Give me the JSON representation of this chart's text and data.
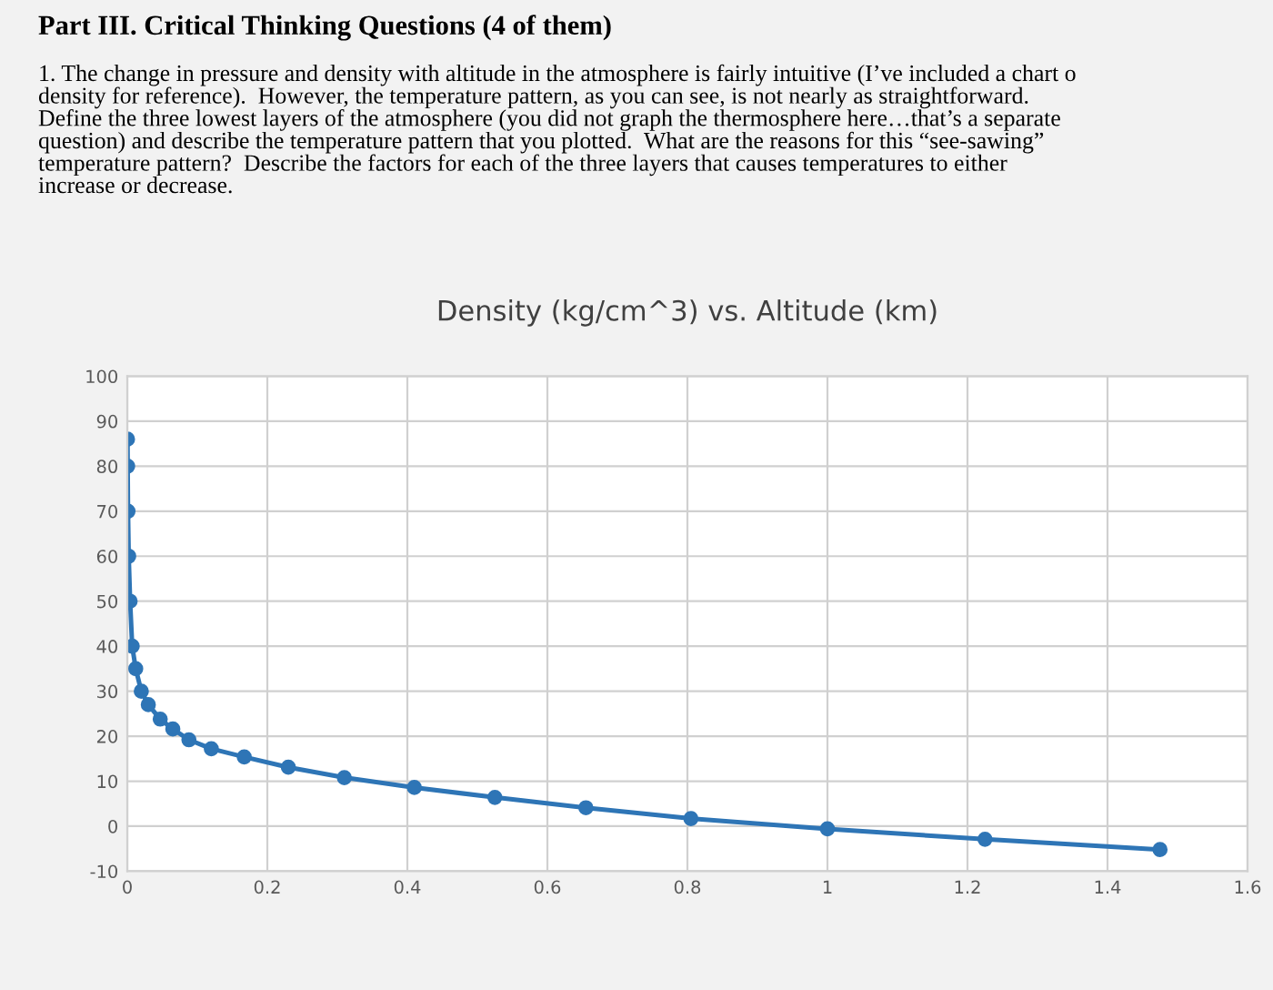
{
  "chart_data": {
    "type": "line",
    "title": "Density (kg/cm^3) vs. Altitude (km)",
    "annotations": [
      "Part III. Critical Thinking Questions (4 of them)",
      "1. The change in pressure and density with altitude in the atmosphere is fairly intuitive (I’ve included a chart o\ndensity for reference).  However, the temperature pattern, as you can see, is not nearly as straightforward.\nDefine the three lowest layers of the atmosphere (you did not graph the thermosphere here…that’s a separate\nquestion) and describe the temperature pattern that you plotted.  What are the reasons for this “see-sawing”\ntemperature pattern?  Describe the factors for each of the three layers that causes temperatures to either\nincrease or decrease."
    ],
    "series": [
      {
        "color": "#2e75b6",
        "x": [
          0.0003,
          0.0005,
          0.001,
          0.002,
          0.004,
          0.007,
          0.012,
          0.02,
          0.03,
          0.047,
          0.065,
          0.088,
          0.12,
          0.167,
          0.23,
          0.31,
          0.41,
          0.525,
          0.655,
          0.805,
          1.0,
          1.225,
          1.475
        ],
        "values": [
          86,
          80,
          70,
          60,
          50,
          40,
          35,
          30,
          27,
          23.8,
          21.6,
          19.2,
          17.2,
          15.4,
          13.1,
          10.8,
          8.6,
          6.4,
          4.1,
          1.7,
          -0.6,
          -2.9,
          -5.2
        ]
      }
    ],
    "xlim": [
      0,
      1.6
    ],
    "xticks": [
      0,
      0.2,
      0.4,
      0.6,
      0.8,
      1,
      1.2,
      1.4,
      1.6
    ],
    "ylim": [
      -10,
      100
    ],
    "yticks": [
      -10,
      0,
      10,
      20,
      30,
      40,
      50,
      60,
      70,
      80,
      90,
      100
    ],
    "grid": true,
    "marker": "circle",
    "line_style": "solid",
    "legend": false
  }
}
